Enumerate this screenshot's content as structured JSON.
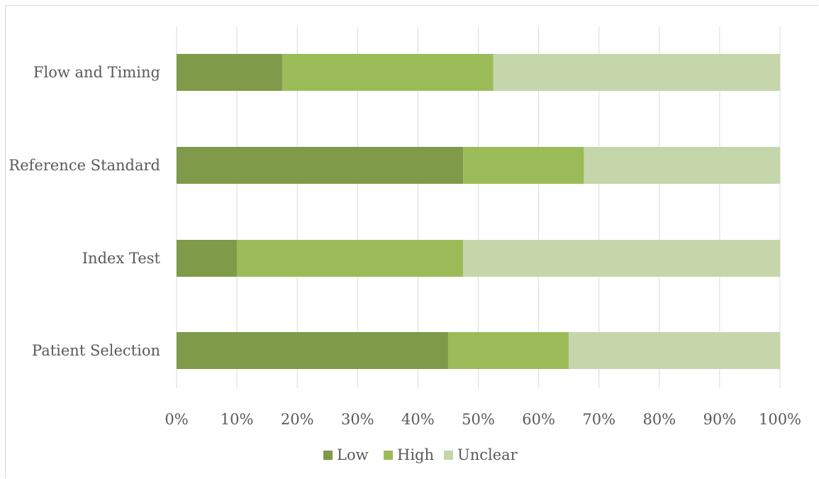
{
  "chart_data": {
    "type": "bar",
    "orientation": "horizontal",
    "stacked": "percent",
    "title": "",
    "xlabel": "",
    "ylabel": "",
    "categories": [
      "Patient Selection",
      "Index Test",
      "Reference Standard",
      "Flow and Timing"
    ],
    "series": [
      {
        "name": "Low",
        "color": "#7f9a48",
        "values": [
          45,
          10,
          47.5,
          17.5
        ]
      },
      {
        "name": "High",
        "color": "#9bbb59",
        "values": [
          20,
          37.5,
          20,
          35
        ]
      },
      {
        "name": "Unclear",
        "color": "#c5d6ab",
        "values": [
          35,
          52.5,
          32.5,
          47.5
        ]
      }
    ],
    "xlim": [
      0,
      100
    ],
    "xticks": [
      "0%",
      "10%",
      "20%",
      "30%",
      "40%",
      "50%",
      "60%",
      "70%",
      "80%",
      "90%",
      "100%"
    ],
    "grid": true,
    "legend_position": "bottom"
  }
}
